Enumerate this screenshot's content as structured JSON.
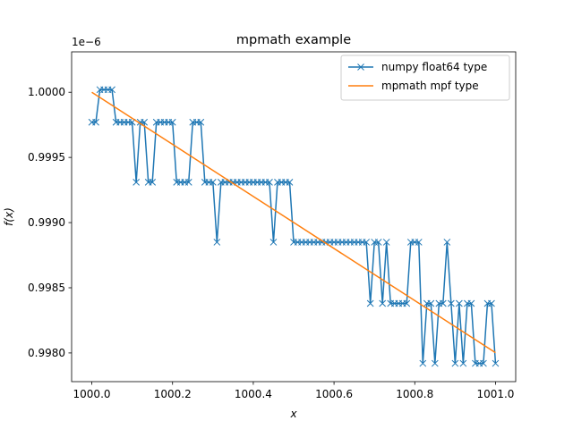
{
  "chart_data": {
    "type": "line",
    "title": "mpmath example",
    "xlabel": "x",
    "ylabel": "f(x)",
    "y_offset_text": "1e−6",
    "xlim": [
      999.95,
      1001.05
    ],
    "ylim": [
      0.99778,
      1.00031
    ],
    "x_ticks": [
      1000.0,
      1000.2,
      1000.4,
      1000.6,
      1000.8,
      1001.0
    ],
    "x_tick_labels": [
      "1000.0",
      "1000.2",
      "1000.4",
      "1000.6",
      "1000.8",
      "1001.0"
    ],
    "y_ticks": [
      0.998,
      0.9985,
      0.999,
      0.9995,
      1.0
    ],
    "y_tick_labels": [
      "0.9980",
      "0.9985",
      "0.9990",
      "0.9995",
      "1.0000"
    ],
    "y_scale_factor": 1e-06,
    "grid": false,
    "legend_position": "upper-right",
    "series": [
      {
        "name": "numpy float64 type",
        "color": "#1f77b4",
        "marker": "x",
        "x": [
          1000.0,
          1000.01,
          1000.02,
          1000.03,
          1000.04,
          1000.05,
          1000.06,
          1000.07,
          1000.08,
          1000.09,
          1000.1,
          1000.11,
          1000.12,
          1000.13,
          1000.14,
          1000.15,
          1000.16,
          1000.17,
          1000.18,
          1000.19,
          1000.2,
          1000.21,
          1000.22,
          1000.23,
          1000.24,
          1000.25,
          1000.26,
          1000.27,
          1000.28,
          1000.29,
          1000.3,
          1000.31,
          1000.32,
          1000.33,
          1000.34,
          1000.35,
          1000.36,
          1000.37,
          1000.38,
          1000.39,
          1000.4,
          1000.41,
          1000.42,
          1000.43,
          1000.44,
          1000.45,
          1000.46,
          1000.47,
          1000.48,
          1000.49,
          1000.5,
          1000.51,
          1000.52,
          1000.53,
          1000.54,
          1000.55,
          1000.56,
          1000.57,
          1000.58,
          1000.59,
          1000.6,
          1000.61,
          1000.62,
          1000.63,
          1000.64,
          1000.65,
          1000.66,
          1000.67,
          1000.68,
          1000.69,
          1000.7,
          1000.71,
          1000.72,
          1000.73,
          1000.74,
          1000.75,
          1000.76,
          1000.77,
          1000.78,
          1000.79,
          1000.8,
          1000.81,
          1000.82,
          1000.83,
          1000.84,
          1000.85,
          1000.86,
          1000.87,
          1000.88,
          1000.89,
          1000.9,
          1000.91,
          1000.92,
          1000.93,
          1000.94,
          1000.95,
          1000.96,
          1000.97,
          1000.98,
          1000.99,
          1001.0
        ],
        "values": [
          0.99977,
          0.99977,
          1.00002,
          1.00002,
          1.00002,
          1.00002,
          0.99977,
          0.99977,
          0.99977,
          0.99977,
          0.99977,
          0.99931,
          0.99977,
          0.99977,
          0.99931,
          0.99931,
          0.99977,
          0.99977,
          0.99977,
          0.99977,
          0.99977,
          0.99931,
          0.99931,
          0.99931,
          0.99931,
          0.99977,
          0.99977,
          0.99977,
          0.99931,
          0.99931,
          0.99931,
          0.99885,
          0.99931,
          0.99931,
          0.99931,
          0.99931,
          0.99931,
          0.99931,
          0.99931,
          0.99931,
          0.99931,
          0.99931,
          0.99931,
          0.99931,
          0.99931,
          0.99885,
          0.99931,
          0.99931,
          0.99931,
          0.99931,
          0.99885,
          0.99885,
          0.99885,
          0.99885,
          0.99885,
          0.99885,
          0.99885,
          0.99885,
          0.99885,
          0.99885,
          0.99885,
          0.99885,
          0.99885,
          0.99885,
          0.99885,
          0.99885,
          0.99885,
          0.99885,
          0.99885,
          0.99838,
          0.99885,
          0.99885,
          0.99838,
          0.99885,
          0.99838,
          0.99838,
          0.99838,
          0.99838,
          0.99838,
          0.99885,
          0.99885,
          0.99885,
          0.99792,
          0.99838,
          0.99838,
          0.99792,
          0.99838,
          0.99838,
          0.99885,
          0.99838,
          0.99792,
          0.99838,
          0.99792,
          0.99838,
          0.99838,
          0.99792,
          0.99792,
          0.99792,
          0.99838,
          0.99838,
          0.99792
        ]
      },
      {
        "name": "mpmath mpf type",
        "color": "#ff7f0e",
        "x": [
          1000.0,
          1001.0
        ],
        "values": [
          1.0,
          0.998002
        ]
      }
    ]
  }
}
